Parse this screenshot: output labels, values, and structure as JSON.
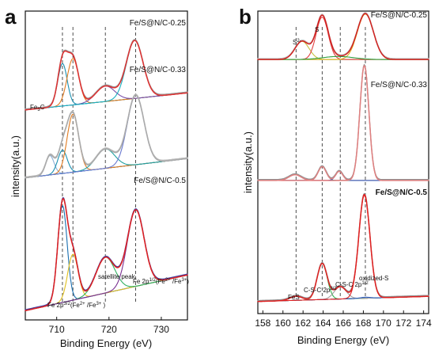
{
  "chart_data": [
    {
      "panel": "a",
      "type": "line",
      "title": "",
      "xlabel": "Binding Energy (eV)",
      "ylabel": "intensity(a.u.)",
      "xlim": [
        704,
        735
      ],
      "xticks": [
        710,
        720,
        730
      ],
      "y_ticks_shown": false,
      "grid": false,
      "traces": [
        {
          "name": "Fe/S@N/C-0.25",
          "offset": 0.68,
          "scale": 0.25,
          "baseline": [
            [
              704,
              0.0
            ],
            [
              735,
              0.22
            ]
          ],
          "components": [
            {
              "color": "#1a8fb0",
              "center": 711.1,
              "sigma": 0.9,
              "amp": 0.55
            },
            {
              "color": "#e07a1f",
              "center": 713.1,
              "sigma": 1.1,
              "amp": 0.6
            },
            {
              "color": "#7a4fa8",
              "center": 719.3,
              "sigma": 1.8,
              "amp": 0.2
            },
            {
              "color": "#1ab0c0",
              "center": 724.9,
              "sigma": 1.6,
              "amp": 0.75
            }
          ],
          "envelope_color": "#e03030",
          "data_color": "#999999"
        },
        {
          "name": "Fe/S@N/C-0.33",
          "offset": 0.46,
          "scale": 0.25,
          "baseline": [
            [
              704,
              0.0
            ],
            [
              735,
              0.25
            ]
          ],
          "components": [
            {
              "color": "#8ab0d8",
              "center": 708.7,
              "sigma": 0.8,
              "amp": 0.25
            },
            {
              "color": "#1a8fb0",
              "center": 711.1,
              "sigma": 0.9,
              "amp": 0.3
            },
            {
              "color": "#e07a1f",
              "center": 713.1,
              "sigma": 1.1,
              "amp": 0.75
            },
            {
              "color": "#20a0a0",
              "center": 719.3,
              "sigma": 1.8,
              "amp": 0.25
            },
            {
              "color": "#6a7ad0",
              "center": 725.1,
              "sigma": 1.6,
              "amp": 0.9
            }
          ],
          "envelope_color": "#aaaaaa",
          "data_color": "#bbbbbb"
        },
        {
          "name": "Fe/S@N/C-0.5",
          "offset": 0.03,
          "scale": 0.33,
          "baseline": [
            [
              704,
              0.0
            ],
            [
              735,
              0.35
            ]
          ],
          "components": [
            {
              "color": "#1a6fb0",
              "center": 711.1,
              "sigma": 0.9,
              "amp": 0.95
            },
            {
              "color": "#e0c020",
              "center": 713.1,
              "sigma": 1.0,
              "amp": 0.45
            },
            {
              "color": "#30b060",
              "center": 719.3,
              "sigma": 1.8,
              "amp": 0.35
            },
            {
              "color": "#7a3090",
              "center": 725.1,
              "sigma": 1.6,
              "amp": 0.75
            }
          ],
          "envelope_color": "#e02020",
          "data_color": "#4040a0"
        }
      ],
      "dashed_lines_at": [
        711.1,
        713.1,
        719.3,
        725.1
      ],
      "annotations": [
        {
          "text": "Fe 2p3/2(Fe2+/Fe3+)",
          "main": "Fe 2p",
          "sup1": "3/2",
          "mid": "(Fe",
          "sup2": "2+",
          "mid2": " /Fe",
          "sup3": "3+",
          "end": " )"
        },
        {
          "text": "satellite peak"
        },
        {
          "text": "Fe 2p1/2(Fe2+/Fe3+)",
          "main": "Fe 2p",
          "sup1": "1/2",
          "mid": "(Fe",
          "sup2": "2+",
          "mid2": " /Fe",
          "sup3": "3+",
          "end": ")"
        },
        {
          "text": "Fe3C",
          "main": "Fe",
          "sub": "3",
          "end": "C"
        }
      ]
    },
    {
      "panel": "b",
      "type": "line",
      "title": "",
      "xlabel": "Binding Energy (eV)",
      "ylabel": "intensity(a.u.)",
      "xlim": [
        157.5,
        174.5
      ],
      "xticks": [
        158,
        160,
        162,
        164,
        166,
        168,
        170,
        172,
        174
      ],
      "y_ticks_shown": false,
      "grid": false,
      "traces": [
        {
          "name": "Fe/S@N/C-0.25",
          "offset": 0.84,
          "scale": 0.2,
          "baseline": [
            [
              157.5,
              0.0
            ],
            [
              174.5,
              0.0
            ]
          ],
          "components": [
            {
              "color": "#c8c040",
              "center": 161.9,
              "sigma": 0.7,
              "amp": 0.3
            },
            {
              "color": "#e04040",
              "center": 163.9,
              "sigma": 0.6,
              "amp": 0.7
            },
            {
              "color": "#e0b020",
              "center": 168.2,
              "sigma": 0.8,
              "amp": 0.75
            },
            {
              "color": "#30a040",
              "center": 165.5,
              "sigma": 1.5,
              "amp": 0.05
            }
          ],
          "envelope_color": "#d02020",
          "data_color": "#c0c0c0"
        },
        {
          "name": "Fe/S@N/C-0.33",
          "offset": 0.44,
          "scale": 0.38,
          "baseline": [
            [
              157.5,
              0.0
            ],
            [
              174.5,
              0.0
            ]
          ],
          "components": [
            {
              "color": "#e08060",
              "center": 161.2,
              "sigma": 0.6,
              "amp": 0.05
            },
            {
              "color": "#30a0a0",
              "center": 163.9,
              "sigma": 0.4,
              "amp": 0.12
            },
            {
              "color": "#4060c0",
              "center": 165.6,
              "sigma": 0.35,
              "amp": 0.08
            },
            {
              "color": "#e06060",
              "center": 168.1,
              "sigma": 0.45,
              "amp": 1.0
            }
          ],
          "envelope_color": "#e08080",
          "data_color": "#909090"
        },
        {
          "name": "Fe/S@N/C-0.5",
          "offset": 0.04,
          "scale": 0.34,
          "baseline": [
            [
              157.5,
              0.0
            ],
            [
              174.5,
              0.05
            ]
          ],
          "components": [
            {
              "color": "#606060",
              "center": 161.3,
              "sigma": 0.6,
              "amp": 0.04
            },
            {
              "color": "#30b050",
              "center": 163.9,
              "sigma": 0.5,
              "amp": 0.35
            },
            {
              "color": "#a0a0a0",
              "center": 165.7,
              "sigma": 0.6,
              "amp": 0.12
            },
            {
              "color": "#3060c0",
              "center": 168.2,
              "sigma": 0.5,
              "amp": 0.01
            },
            {
              "color": "#e02020",
              "center": 168.1,
              "sigma": 0.55,
              "amp": 1.0
            }
          ],
          "envelope_color": "#e02020",
          "data_color": "#909090"
        }
      ],
      "dashed_lines_at": [
        161.3,
        163.9,
        165.7,
        168.2
      ],
      "annotations": [
        {
          "text": "FeS"
        },
        {
          "text": "C-S-C 2p3/2",
          "main": "C-S-C 2p",
          "sup1": "3/2"
        },
        {
          "text": "C-S-C 2p1/2",
          "main": "C-S-C 2p",
          "sup1": "1/2"
        },
        {
          "text": "oxidized-S"
        },
        {
          "text": "S2-",
          "main": "S",
          "sup1": "2-"
        },
        {
          "text": "S"
        }
      ]
    }
  ],
  "colors": {
    "frame": "#111111",
    "dash": "#222222"
  }
}
